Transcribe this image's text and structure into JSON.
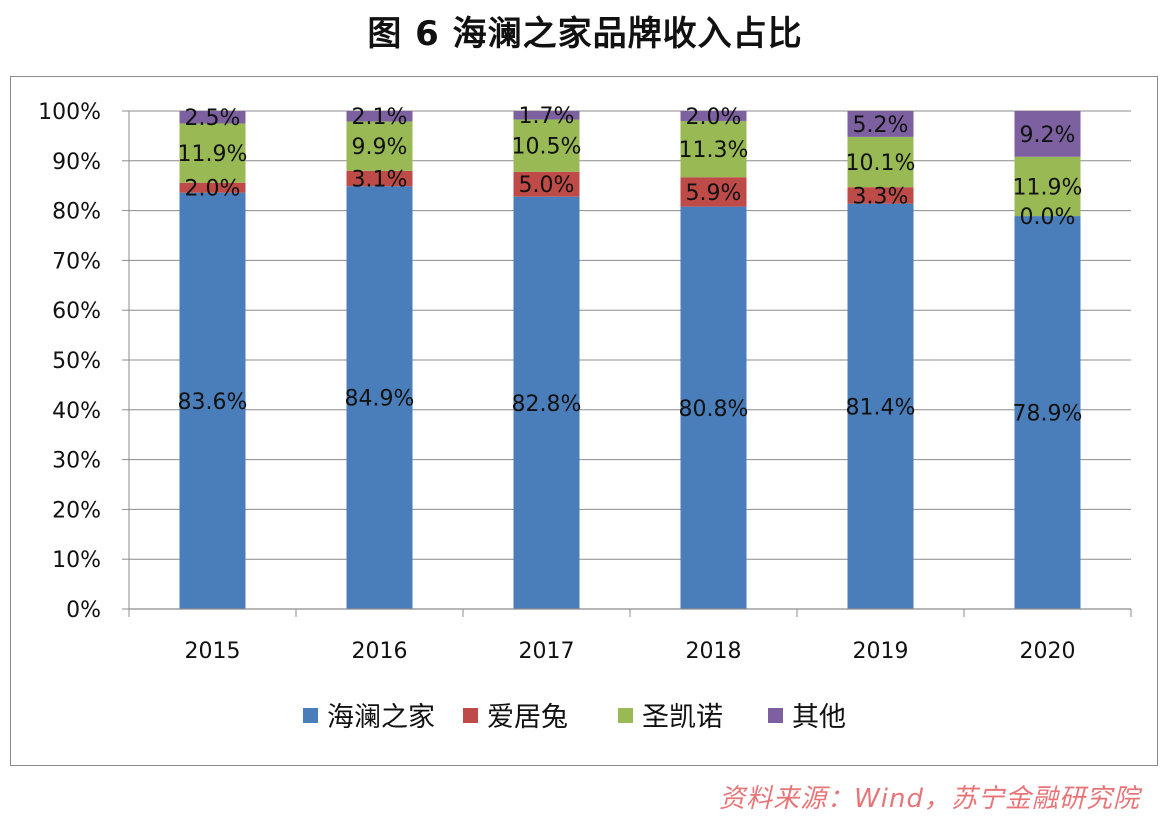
{
  "title": "图 6  海澜之家品牌收入占比",
  "source": "资料来源：Wind，苏宁金融研究院",
  "chart_data": {
    "type": "bar",
    "stacked": true,
    "title": "图 6  海澜之家品牌收入占比",
    "categories": [
      "2015",
      "2016",
      "2017",
      "2018",
      "2019",
      "2020"
    ],
    "series": [
      {
        "name": "海澜之家",
        "color": "#4a7ebb",
        "values": [
          83.6,
          84.9,
          82.8,
          80.8,
          81.4,
          78.9
        ],
        "labels": [
          "83.6%",
          "84.9%",
          "82.8%",
          "80.8%",
          "81.4%",
          "78.9%"
        ]
      },
      {
        "name": "爱居兔",
        "color": "#be4b48",
        "values": [
          2.0,
          3.1,
          5.0,
          5.9,
          3.3,
          0.0
        ],
        "labels": [
          "2.0%",
          "3.1%",
          "5.0%",
          "5.9%",
          "3.3%",
          "0.0%"
        ]
      },
      {
        "name": "圣凯诺",
        "color": "#98b954",
        "values": [
          11.9,
          9.9,
          10.5,
          11.3,
          10.1,
          11.9
        ],
        "labels": [
          "11.9%",
          "9.9%",
          "10.5%",
          "11.3%",
          "10.1%",
          "11.9%"
        ]
      },
      {
        "name": "其他",
        "color": "#7d60a0",
        "values": [
          2.5,
          2.1,
          1.7,
          2.0,
          5.2,
          9.2
        ],
        "labels": [
          "2.5%",
          "2.1%",
          "1.7%",
          "2.0%",
          "5.2%",
          "9.2%"
        ]
      }
    ],
    "ylim": [
      0,
      100
    ],
    "yticks": [
      "0%",
      "10%",
      "20%",
      "30%",
      "40%",
      "50%",
      "60%",
      "70%",
      "80%",
      "90%",
      "100%"
    ],
    "grid": true,
    "legend_position": "bottom",
    "xlabel": "",
    "ylabel": ""
  }
}
